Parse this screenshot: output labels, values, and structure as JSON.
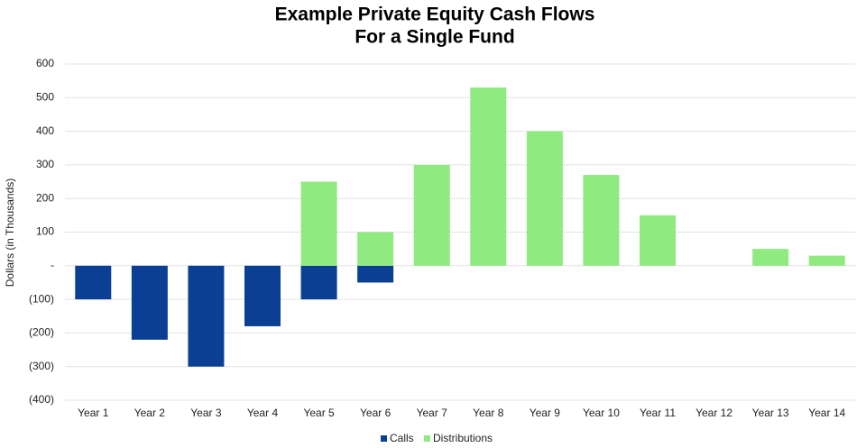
{
  "chart_data": {
    "type": "bar",
    "title": [
      "Example Private Equity Cash Flows",
      "For a Single Fund"
    ],
    "y_label": "Dollars (in Thousands)",
    "categories": [
      "Year 1",
      "Year 2",
      "Year 3",
      "Year 4",
      "Year 5",
      "Year 6",
      "Year 7",
      "Year 8",
      "Year 9",
      "Year 10",
      "Year 11",
      "Year 12",
      "Year 13",
      "Year 14"
    ],
    "series": [
      {
        "name": "Calls",
        "color": "#0b3f94",
        "values": [
          -100,
          -220,
          -300,
          -180,
          -100,
          -50,
          0,
          0,
          0,
          0,
          0,
          0,
          0,
          0
        ]
      },
      {
        "name": "Distributions",
        "color": "#8fea80",
        "values": [
          0,
          0,
          0,
          0,
          250,
          100,
          300,
          530,
          400,
          270,
          150,
          0,
          50,
          30
        ]
      }
    ],
    "ylim": [
      -400,
      600
    ],
    "yticks": [
      {
        "value": -400,
        "label": "(400)"
      },
      {
        "value": -300,
        "label": "(300)"
      },
      {
        "value": -200,
        "label": "(200)"
      },
      {
        "value": -100,
        "label": "(100)"
      },
      {
        "value": 0,
        "label": "-"
      },
      100,
      200,
      300,
      400,
      500,
      600
    ],
    "grid": true,
    "legend": "bottom"
  }
}
